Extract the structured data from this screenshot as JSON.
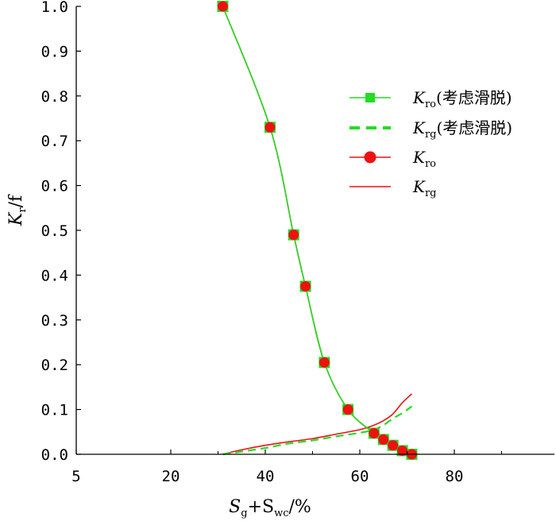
{
  "chart_data": {
    "type": "line",
    "xlabel": {
      "main": "S",
      "sub1": "g",
      "plus": "+S",
      "sub2": "wc",
      "unit": "/%"
    },
    "ylabel": {
      "main": "K",
      "sub": "r",
      "unit": "/f"
    },
    "x_ticks": [
      "5",
      "20",
      "40",
      "60",
      "80"
    ],
    "y_ticks": [
      "0.0",
      "0.1",
      "0.2",
      "0.3",
      "0.4",
      "0.5",
      "0.6",
      "0.7",
      "0.8",
      "0.9",
      "1.0"
    ],
    "xlim": [
      5,
      100
    ],
    "ylim": [
      0,
      1.0
    ],
    "grid": false,
    "legend_position": "top-right",
    "series": [
      {
        "name": "Kro(考虑滑脱)",
        "legend": {
          "main": "K",
          "sub": "ro",
          "suffix": "(考虑滑脱)"
        },
        "color": "#22dd22",
        "style": "solid-square-markers",
        "x": [
          31,
          41,
          46,
          48.5,
          52.5,
          57.5,
          63,
          65,
          67,
          69,
          71
        ],
        "y": [
          1.0,
          0.73,
          0.49,
          0.375,
          0.205,
          0.1,
          0.047,
          0.033,
          0.02,
          0.008,
          0.0
        ]
      },
      {
        "name": "Krg(考虑滑脱)",
        "legend": {
          "main": "K",
          "sub": "rg",
          "suffix": "(考虑滑脱)"
        },
        "color": "#22dd22",
        "style": "dashed",
        "x": [
          31,
          35,
          40,
          45,
          50,
          55,
          60,
          63,
          65,
          67,
          69,
          71
        ],
        "y": [
          0.0,
          0.006,
          0.014,
          0.024,
          0.031,
          0.04,
          0.048,
          0.055,
          0.065,
          0.08,
          0.092,
          0.107
        ]
      },
      {
        "name": "Kro",
        "legend": {
          "main": "K",
          "sub": "ro",
          "suffix": ""
        },
        "color": "#ee1111",
        "style": "solid-circle-markers",
        "x": [
          31,
          41,
          46,
          48.5,
          52.5,
          57.5,
          63,
          65,
          67,
          69,
          71
        ],
        "y": [
          1.0,
          0.73,
          0.49,
          0.375,
          0.205,
          0.1,
          0.047,
          0.033,
          0.02,
          0.008,
          0.0
        ]
      },
      {
        "name": "Krg",
        "legend": {
          "main": "K",
          "sub": "rg",
          "suffix": ""
        },
        "color": "#ee1111",
        "style": "solid",
        "x": [
          31,
          35,
          40,
          45,
          50,
          55,
          60,
          63,
          65,
          67,
          69,
          71
        ],
        "y": [
          0.0,
          0.01,
          0.02,
          0.028,
          0.035,
          0.045,
          0.055,
          0.065,
          0.075,
          0.09,
          0.115,
          0.135
        ]
      }
    ]
  }
}
